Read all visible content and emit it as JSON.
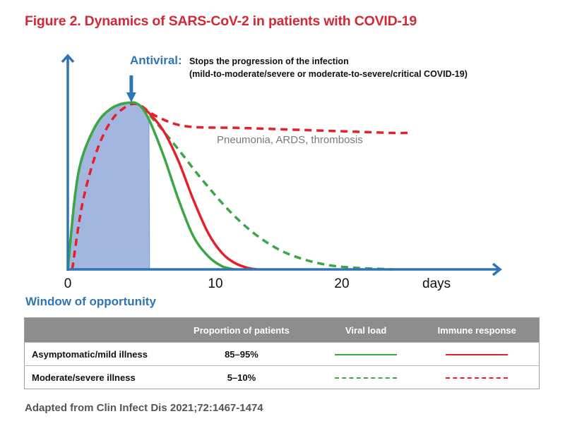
{
  "title": "Figure 2. Dynamics of SARS-CoV-2 in patients with COVID-19",
  "annotations": {
    "antiviral_label": "Antiviral:",
    "antiviral_line1": "Stops the progression of the infection",
    "antiviral_line2": "(mild-to-moderate/severe or moderate-to-severe/critical COVID-19)",
    "complications": "Pneumonia, ARDS, thrombosis",
    "window": "Window of opportunity"
  },
  "colors": {
    "axis": "#2e75b6",
    "viral": "#3aa645",
    "immune": "#e5202b",
    "window_fill": "#a3b6df",
    "title": "#d02a36"
  },
  "chart_data": {
    "type": "line",
    "title": "Figure 2. Dynamics of SARS-CoV-2 in patients with COVID-19",
    "xlabel": "days",
    "ylabel": "",
    "xticks": [
      0,
      10,
      20
    ],
    "xlim": [
      0,
      30
    ],
    "ylim": [
      0,
      1
    ],
    "grid": false,
    "antiviral_day": 4.3,
    "window_of_opportunity_days": [
      0,
      5.5
    ],
    "series": [
      {
        "name": "Viral load (asymptomatic/mild)",
        "style": "solid",
        "color": "viral",
        "x": [
          0,
          0.5,
          1,
          2,
          3,
          4,
          4.8,
          5.5,
          6.5,
          7.5,
          8.5,
          9.5,
          10.5,
          11.5
        ],
        "y": [
          0,
          0.45,
          0.68,
          0.88,
          0.97,
          1.0,
          0.99,
          0.9,
          0.68,
          0.42,
          0.2,
          0.08,
          0.02,
          0
        ]
      },
      {
        "name": "Immune response (asymptomatic/mild)",
        "style": "solid",
        "color": "immune",
        "x": [
          4.8,
          5.5,
          6.5,
          7.5,
          8.5,
          9.5,
          10.5,
          11.5,
          12.5,
          13.3
        ],
        "y": [
          0.99,
          0.94,
          0.83,
          0.65,
          0.42,
          0.22,
          0.1,
          0.04,
          0.01,
          0
        ]
      },
      {
        "name": "Viral load (moderate/severe)",
        "style": "dashed",
        "color": "viral",
        "x": [
          0,
          0.5,
          1,
          2,
          3,
          4,
          4.8,
          6,
          7.5,
          9,
          11,
          13,
          15,
          17,
          19,
          21,
          23,
          24
        ],
        "y": [
          0,
          0.45,
          0.68,
          0.88,
          0.97,
          1.0,
          0.99,
          0.88,
          0.72,
          0.55,
          0.36,
          0.22,
          0.12,
          0.06,
          0.025,
          0.01,
          0.003,
          0
        ]
      },
      {
        "name": "Immune response (moderate/severe)",
        "style": "dashed",
        "color": "immune",
        "x": [
          0.3,
          1,
          2,
          3,
          4,
          4.8,
          6,
          8,
          12,
          16,
          20,
          24,
          25.2
        ],
        "y": [
          0,
          0.4,
          0.72,
          0.9,
          0.98,
          0.99,
          0.92,
          0.86,
          0.85,
          0.84,
          0.83,
          0.82,
          0.82
        ]
      }
    ]
  },
  "table": {
    "headers": [
      "",
      "Proportion of patients",
      "Viral load",
      "Immune response"
    ],
    "rows": [
      {
        "label": "Asymptomatic/mild illness",
        "proportion": "85–95%",
        "style": "solid"
      },
      {
        "label": "Moderate/severe illness",
        "proportion": "5–10%",
        "style": "dashed"
      }
    ]
  },
  "source": "Adapted from Clin Infect Dis 2021;72:1467-1474"
}
